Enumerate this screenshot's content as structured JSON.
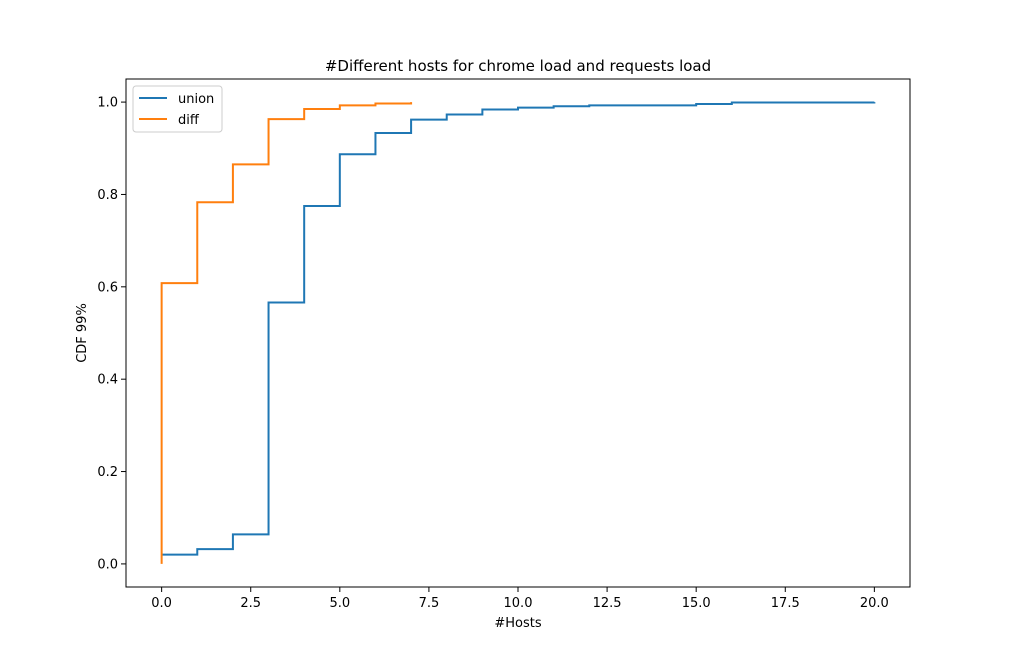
{
  "chart_data": {
    "type": "line",
    "title": "#Different hosts for chrome load and requests load",
    "xlabel": "#Hosts",
    "ylabel": "CDF 99%",
    "xlim": [
      -1,
      21
    ],
    "ylim": [
      -0.05,
      1.05
    ],
    "xticks": [
      0.0,
      2.5,
      5.0,
      7.5,
      10.0,
      12.5,
      15.0,
      17.5,
      20.0
    ],
    "xtick_labels": [
      "0.0",
      "2.5",
      "5.0",
      "7.5",
      "10.0",
      "12.5",
      "15.0",
      "17.5",
      "20.0"
    ],
    "yticks": [
      0.0,
      0.2,
      0.4,
      0.6,
      0.8,
      1.0
    ],
    "ytick_labels": [
      "0.0",
      "0.2",
      "0.4",
      "0.6",
      "0.8",
      "1.0"
    ],
    "legend_position": "top-left",
    "series": [
      {
        "name": "union",
        "color": "#1f77b4",
        "step": "post",
        "x": [
          0,
          1,
          2,
          3,
          4,
          5,
          6,
          7,
          8,
          9,
          10,
          11,
          12,
          15,
          16,
          20
        ],
        "y": [
          0.02,
          0.032,
          0.064,
          0.566,
          0.775,
          0.887,
          0.933,
          0.962,
          0.973,
          0.984,
          0.988,
          0.991,
          0.993,
          0.996,
          0.999,
          1.0
        ]
      },
      {
        "name": "diff",
        "color": "#ff7f0e",
        "step": "post",
        "x": [
          0,
          0,
          1,
          2,
          3,
          4,
          5,
          6,
          7
        ],
        "y": [
          0.0,
          0.608,
          0.783,
          0.865,
          0.963,
          0.985,
          0.993,
          0.997,
          1.0
        ]
      }
    ]
  }
}
